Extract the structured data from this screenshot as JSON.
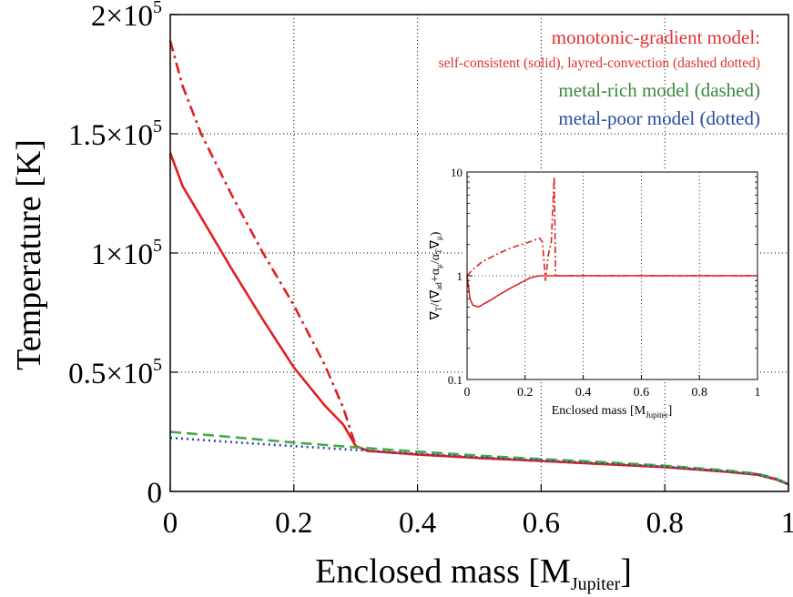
{
  "chart_data": [
    {
      "type": "line",
      "xlabel": "Enclosed mass [M",
      "xlabel_sub": "Jupiter",
      "xlabel_close": "]",
      "ylabel": "Temperature [K]",
      "xlim": [
        0,
        1
      ],
      "ylim": [
        0,
        200000
      ],
      "grid": true,
      "x_ticks": [
        {
          "value": 0,
          "label": "0"
        },
        {
          "value": 0.2,
          "label": "0.2"
        },
        {
          "value": 0.4,
          "label": "0.4"
        },
        {
          "value": 0.6,
          "label": "0.6"
        },
        {
          "value": 0.8,
          "label": "0.8"
        },
        {
          "value": 1,
          "label": "1"
        }
      ],
      "y_ticks": [
        {
          "value": 0,
          "mant": "0",
          "exp": ""
        },
        {
          "value": 50000,
          "mant": "0.5×10",
          "exp": "5"
        },
        {
          "value": 100000,
          "mant": "1×10",
          "exp": "5"
        },
        {
          "value": 150000,
          "mant": "1.5×10",
          "exp": "5"
        },
        {
          "value": 200000,
          "mant": "2×10",
          "exp": "5"
        }
      ],
      "legend_placement": "top-right",
      "legend": [
        {
          "text": "monotonic-gradient model:",
          "color": "#e03030",
          "size": "large"
        },
        {
          "text": "self-consistent (solid), layred-convection (dashed dotted)",
          "color": "#e03030",
          "size": "small"
        },
        {
          "text": "metal-rich model (dashed)",
          "color": "#3a8a3a",
          "size": "large"
        },
        {
          "text": "metal-poor model (dotted)",
          "color": "#2a4aa0",
          "size": "large"
        }
      ],
      "series": [
        {
          "style": "solid",
          "color": "#e02020",
          "x": [
            0,
            0.02,
            0.05,
            0.1,
            0.15,
            0.2,
            0.25,
            0.28,
            0.3,
            0.32,
            0.4,
            0.5,
            0.6,
            0.7,
            0.8,
            0.9,
            0.95,
            0.98,
            1.0
          ],
          "y": [
            142000,
            128000,
            115000,
            93000,
            72000,
            52000,
            36000,
            28000,
            19000,
            17000,
            15500,
            14000,
            12800,
            11500,
            10200,
            8200,
            7000,
            5000,
            3000
          ]
        },
        {
          "style": "dashdot",
          "color": "#e02020",
          "x": [
            0,
            0.02,
            0.05,
            0.1,
            0.15,
            0.2,
            0.25,
            0.28,
            0.3,
            0.32,
            0.4,
            0.5,
            0.6,
            0.7,
            0.8,
            0.9,
            0.95,
            0.98,
            1.0
          ],
          "y": [
            189000,
            170000,
            150000,
            124000,
            100000,
            78000,
            53000,
            35000,
            19000,
            17000,
            15500,
            14000,
            12800,
            11500,
            10300,
            8400,
            7200,
            5200,
            3000
          ]
        },
        {
          "style": "dashed",
          "color": "#44aa44",
          "x": [
            0,
            0.1,
            0.2,
            0.3,
            0.4,
            0.5,
            0.6,
            0.7,
            0.8,
            0.9,
            0.95,
            0.98,
            1.0
          ],
          "y": [
            25000,
            22800,
            20500,
            18500,
            16700,
            15000,
            13600,
            12300,
            10800,
            8800,
            7400,
            5400,
            3200
          ]
        },
        {
          "style": "dotted",
          "color": "#2a4aa0",
          "x": [
            0,
            0.1,
            0.2,
            0.3,
            0.4,
            0.5,
            0.6,
            0.7,
            0.8,
            0.9,
            0.95,
            0.98,
            1.0
          ],
          "y": [
            22500,
            20700,
            19000,
            17400,
            15800,
            14300,
            13000,
            11800,
            10400,
            8400,
            7100,
            5200,
            3000
          ]
        }
      ]
    },
    {
      "type": "line",
      "inset": true,
      "xlabel": "Enclosed mass [M",
      "xlabel_sub": "Jupiter",
      "xlabel_close": "]",
      "ylabel_parts": {
        "a": "∇",
        "a_sub": "T",
        "b": "/(∇",
        "b_sub": "ad",
        "c": "+α",
        "c_sub": "μ",
        "d": "/α",
        "d_sub": "T",
        "e": "∇",
        "e_sub": "μ",
        "f": ")"
      },
      "xlim": [
        0,
        1
      ],
      "ylim": [
        0.1,
        10
      ],
      "yscale": "log",
      "grid": true,
      "x_ticks": [
        {
          "value": 0,
          "label": "0"
        },
        {
          "value": 0.2,
          "label": "0.2"
        },
        {
          "value": 0.4,
          "label": "0.4"
        },
        {
          "value": 0.6,
          "label": "0.6"
        },
        {
          "value": 0.8,
          "label": "0.8"
        },
        {
          "value": 1,
          "label": "1"
        }
      ],
      "y_ticks": [
        {
          "value": 0.1,
          "label": "0.1"
        },
        {
          "value": 1,
          "label": "1"
        },
        {
          "value": 10,
          "label": "10"
        }
      ],
      "series": [
        {
          "style": "solid",
          "color": "#e02020",
          "x": [
            0,
            0.01,
            0.02,
            0.04,
            0.06,
            0.08,
            0.1,
            0.12,
            0.15,
            0.18,
            0.2,
            0.22,
            0.25,
            0.28,
            0.3,
            0.4,
            0.6,
            0.8,
            1.0
          ],
          "y": [
            1.0,
            0.6,
            0.52,
            0.5,
            0.54,
            0.58,
            0.63,
            0.68,
            0.76,
            0.84,
            0.9,
            0.96,
            1.0,
            1.0,
            1.0,
            1.0,
            1.0,
            1.0,
            1.0
          ]
        },
        {
          "style": "dashdot",
          "color": "#e02020",
          "x": [
            0,
            0.02,
            0.05,
            0.1,
            0.15,
            0.2,
            0.25,
            0.26,
            0.27,
            0.28,
            0.29,
            0.3,
            0.305,
            0.31,
            0.4,
            0.6,
            0.8,
            1.0
          ],
          "y": [
            1.0,
            1.15,
            1.35,
            1.6,
            1.85,
            2.05,
            2.3,
            2.1,
            0.9,
            1.6,
            2.1,
            9.0,
            1.0,
            1.0,
            1.0,
            1.0,
            1.0,
            1.0
          ]
        }
      ]
    }
  ]
}
